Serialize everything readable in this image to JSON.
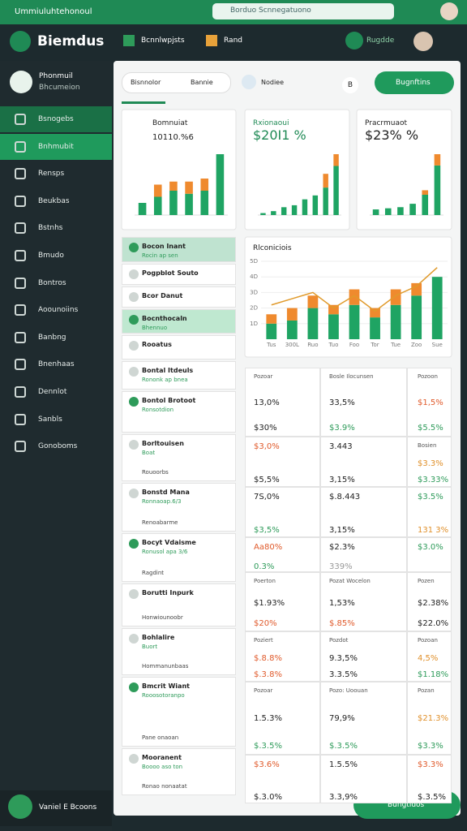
{
  "header": {
    "title": "Ummiuluhtehonoul",
    "search": "Borduo Scnnegatuono"
  },
  "nav": {
    "logo": "Biemdus",
    "tabs": [
      "Bcnnlwpjsts",
      "Rand"
    ],
    "button": "Rugdde"
  },
  "sidebar": {
    "profile": {
      "name": "Phonmuil",
      "sub": "Bhcumeion"
    },
    "items": [
      "Bsnogebs",
      "Bnhmubit",
      "Rensps",
      "Beukbas",
      "Bstnhs",
      "Bmudo",
      "Bontros",
      "Aoounoiins",
      "Banbng",
      "Bnenhaas",
      "Dennlot",
      "Sanbls",
      "Gonoboms"
    ],
    "footer": "Vaniel E Bcoons"
  },
  "toolbar": {
    "tabs": [
      "Bisnnolor",
      "Bannie"
    ],
    "filter": "Nodiee",
    "badge": "B",
    "button": "Bugnftins"
  },
  "cards": [
    {
      "title": "Bomnuiat",
      "value": "10110.%6",
      "values": [
        8,
        12,
        16,
        14,
        16,
        40
      ],
      "tops": [
        0,
        8,
        6,
        8,
        8,
        0
      ]
    },
    {
      "title": "Rxionaoui",
      "value": "$20I1 %",
      "values": [
        2,
        4,
        8,
        10,
        16,
        20,
        28,
        50
      ],
      "tops": [
        0,
        0,
        0,
        0,
        0,
        0,
        14,
        12
      ]
    },
    {
      "title": "Pracrmuaot",
      "value": "$23% %",
      "values": [
        5,
        6,
        7,
        10,
        18,
        44
      ],
      "tops": [
        0,
        0,
        0,
        0,
        4,
        10
      ]
    }
  ],
  "main_chart": {
    "title": "Rlconiciois",
    "categories": [
      "Tus",
      "300L",
      "Ruo",
      "Tuo",
      "Foo",
      "Tor",
      "Tue",
      "Zoo",
      "Sue"
    ],
    "values": [
      10,
      12,
      20,
      16,
      22,
      14,
      22,
      28,
      40
    ],
    "tops": [
      6,
      8,
      8,
      6,
      10,
      6,
      10,
      8,
      0
    ],
    "line": [
      22,
      26,
      30,
      20,
      28,
      18,
      28,
      34,
      46
    ],
    "ylim": [
      0,
      50
    ],
    "yticks": [
      {
        "value": 10,
        "label": "1D"
      },
      {
        "value": 20,
        "label": "2D"
      },
      {
        "value": 30,
        "label": "3D"
      },
      {
        "value": 40,
        "label": "4D"
      },
      {
        "value": 50,
        "label": "5D"
      }
    ]
  },
  "list": [
    {
      "title": "Bocon Inant",
      "sub": "Rocin ap sen"
    },
    {
      "title": "Pogpblot Souto"
    },
    {
      "title": "Bcor Danut"
    },
    {
      "title": "Bocnthocaln",
      "sub": "Bhennuo"
    },
    {
      "title": "Rooatus"
    },
    {
      "title": "Bontal Itdeuls",
      "sub": "Rononk ap bnea"
    },
    {
      "title": "Bontol Brotoot",
      "sub": "Ronsotdion"
    },
    {
      "title": "Borltouisen",
      "sub": "Boat",
      "foot": "Rouoorbs"
    },
    {
      "title": "Bonstd Mana",
      "sub": "Ronnaoap.6/3",
      "foot": "Renoabarme"
    },
    {
      "title": "Bocyt Vdaisme",
      "sub": "Ronusol apa 3/6",
      "foot": "Ragdint"
    },
    {
      "title": "Borutti Inpurk",
      "foot": "Honwiounoobr"
    },
    {
      "title": "Bohlalire",
      "sub": "Buort",
      "foot": "Hommanunbaas"
    },
    {
      "title": "Bmcrit Wiant",
      "sub": "Rooosotoranpo",
      "foot": "Pane onaoan"
    },
    {
      "title": "Mooranent",
      "sub": "Boooo aso ton",
      "foot": "Ronao nonaatat"
    }
  ],
  "table": [
    [
      [
        [
          "Pozoar",
          "#555"
        ],
        [
          "13,0%",
          "#222"
        ],
        [
          "$30%",
          "#222"
        ]
      ],
      [
        [
          "Bosle Ilocunsen",
          "#555"
        ],
        [
          "33,5%",
          "#222"
        ],
        [
          "$3.9%",
          "#2e9b5a"
        ]
      ],
      [
        [
          "Pozoon",
          "#555"
        ],
        [
          "$1,5%",
          "#e05a2b"
        ],
        [
          "$5.5%",
          "#2e9b5a"
        ]
      ]
    ],
    [
      [
        [
          "$3,0%",
          "#e05a2b"
        ],
        [
          "$5,5%",
          "#222"
        ]
      ],
      [
        [
          "3.443",
          "#222"
        ],
        [
          "3,15%",
          "#222"
        ]
      ],
      [
        [
          "Bosien",
          "#555"
        ],
        [
          "$3.3%",
          "#e0902b"
        ],
        [
          "$3.33%",
          "#2e9b5a"
        ]
      ]
    ],
    [
      [
        [
          "7S,0%",
          "#222"
        ],
        [
          "$3,5%",
          "#2e9b5a"
        ]
      ],
      [
        [
          "$.8.443",
          "#222"
        ],
        [
          "3,15%",
          "#222"
        ]
      ],
      [
        [
          "$3.5%",
          "#2e9b5a"
        ],
        [
          "131 3%",
          "#e0902b"
        ]
      ]
    ],
    [
      [
        [
          "Aa80%",
          "#e05a2b"
        ],
        [
          "0.3%",
          "#2e9b5a"
        ]
      ],
      [
        [
          "$2.3%",
          "#222"
        ],
        [
          "339%",
          "#999"
        ]
      ],
      [
        [
          "$3.0%",
          "#2e9b5a"
        ]
      ]
    ],
    [
      [
        [
          "Poerton",
          "#555"
        ],
        [
          "$1.93%",
          "#222"
        ],
        [
          "$20%",
          "#e05a2b"
        ]
      ],
      [
        [
          "Pozat Wocelon",
          "#555"
        ],
        [
          "1,53%",
          "#222"
        ],
        [
          "$.85%",
          "#e05a2b"
        ]
      ],
      [
        [
          "Pozen",
          "#555"
        ],
        [
          "$2.38%",
          "#222"
        ],
        [
          "$22.0%",
          "#222"
        ]
      ]
    ],
    [
      [
        [
          "Poziert",
          "#555"
        ],
        [
          "$.8.8%",
          "#e05a2b"
        ],
        [
          "$.3.8%",
          "#e05a2b"
        ]
      ],
      [
        [
          "Pozdot",
          "#555"
        ],
        [
          "9.3,5%",
          "#222"
        ],
        [
          "3.3.5%",
          "#222"
        ]
      ],
      [
        [
          "Pozoan",
          "#555"
        ],
        [
          "4,5%",
          "#e0902b"
        ],
        [
          "$1.18%",
          "#2e9b5a"
        ]
      ]
    ],
    [
      [
        [
          "Pozoar",
          "#555"
        ],
        [
          "1.5.3%",
          "#222"
        ],
        [
          "$.3.5%",
          "#2e9b5a"
        ]
      ],
      [
        [
          "Pozo: Uoouan",
          "#555"
        ],
        [
          "79,9%",
          "#222"
        ],
        [
          "$.3.5%",
          "#2e9b5a"
        ]
      ],
      [
        [
          "Pozan",
          "#555"
        ],
        [
          "$21.3%",
          "#e0902b"
        ],
        [
          "$3.3%",
          "#2e9b5a"
        ]
      ]
    ],
    [
      [
        [
          "$3.6%",
          "#e05a2b"
        ],
        [
          "$.3.0%",
          "#222"
        ]
      ],
      [
        [
          "1.5.5%",
          "#222"
        ],
        [
          "3.3,9%",
          "#222"
        ]
      ],
      [
        [
          "$3.3%",
          "#e05a2b"
        ],
        [
          "$.3.5%",
          "#222"
        ]
      ]
    ]
  ],
  "fab": "Bungtidos"
}
